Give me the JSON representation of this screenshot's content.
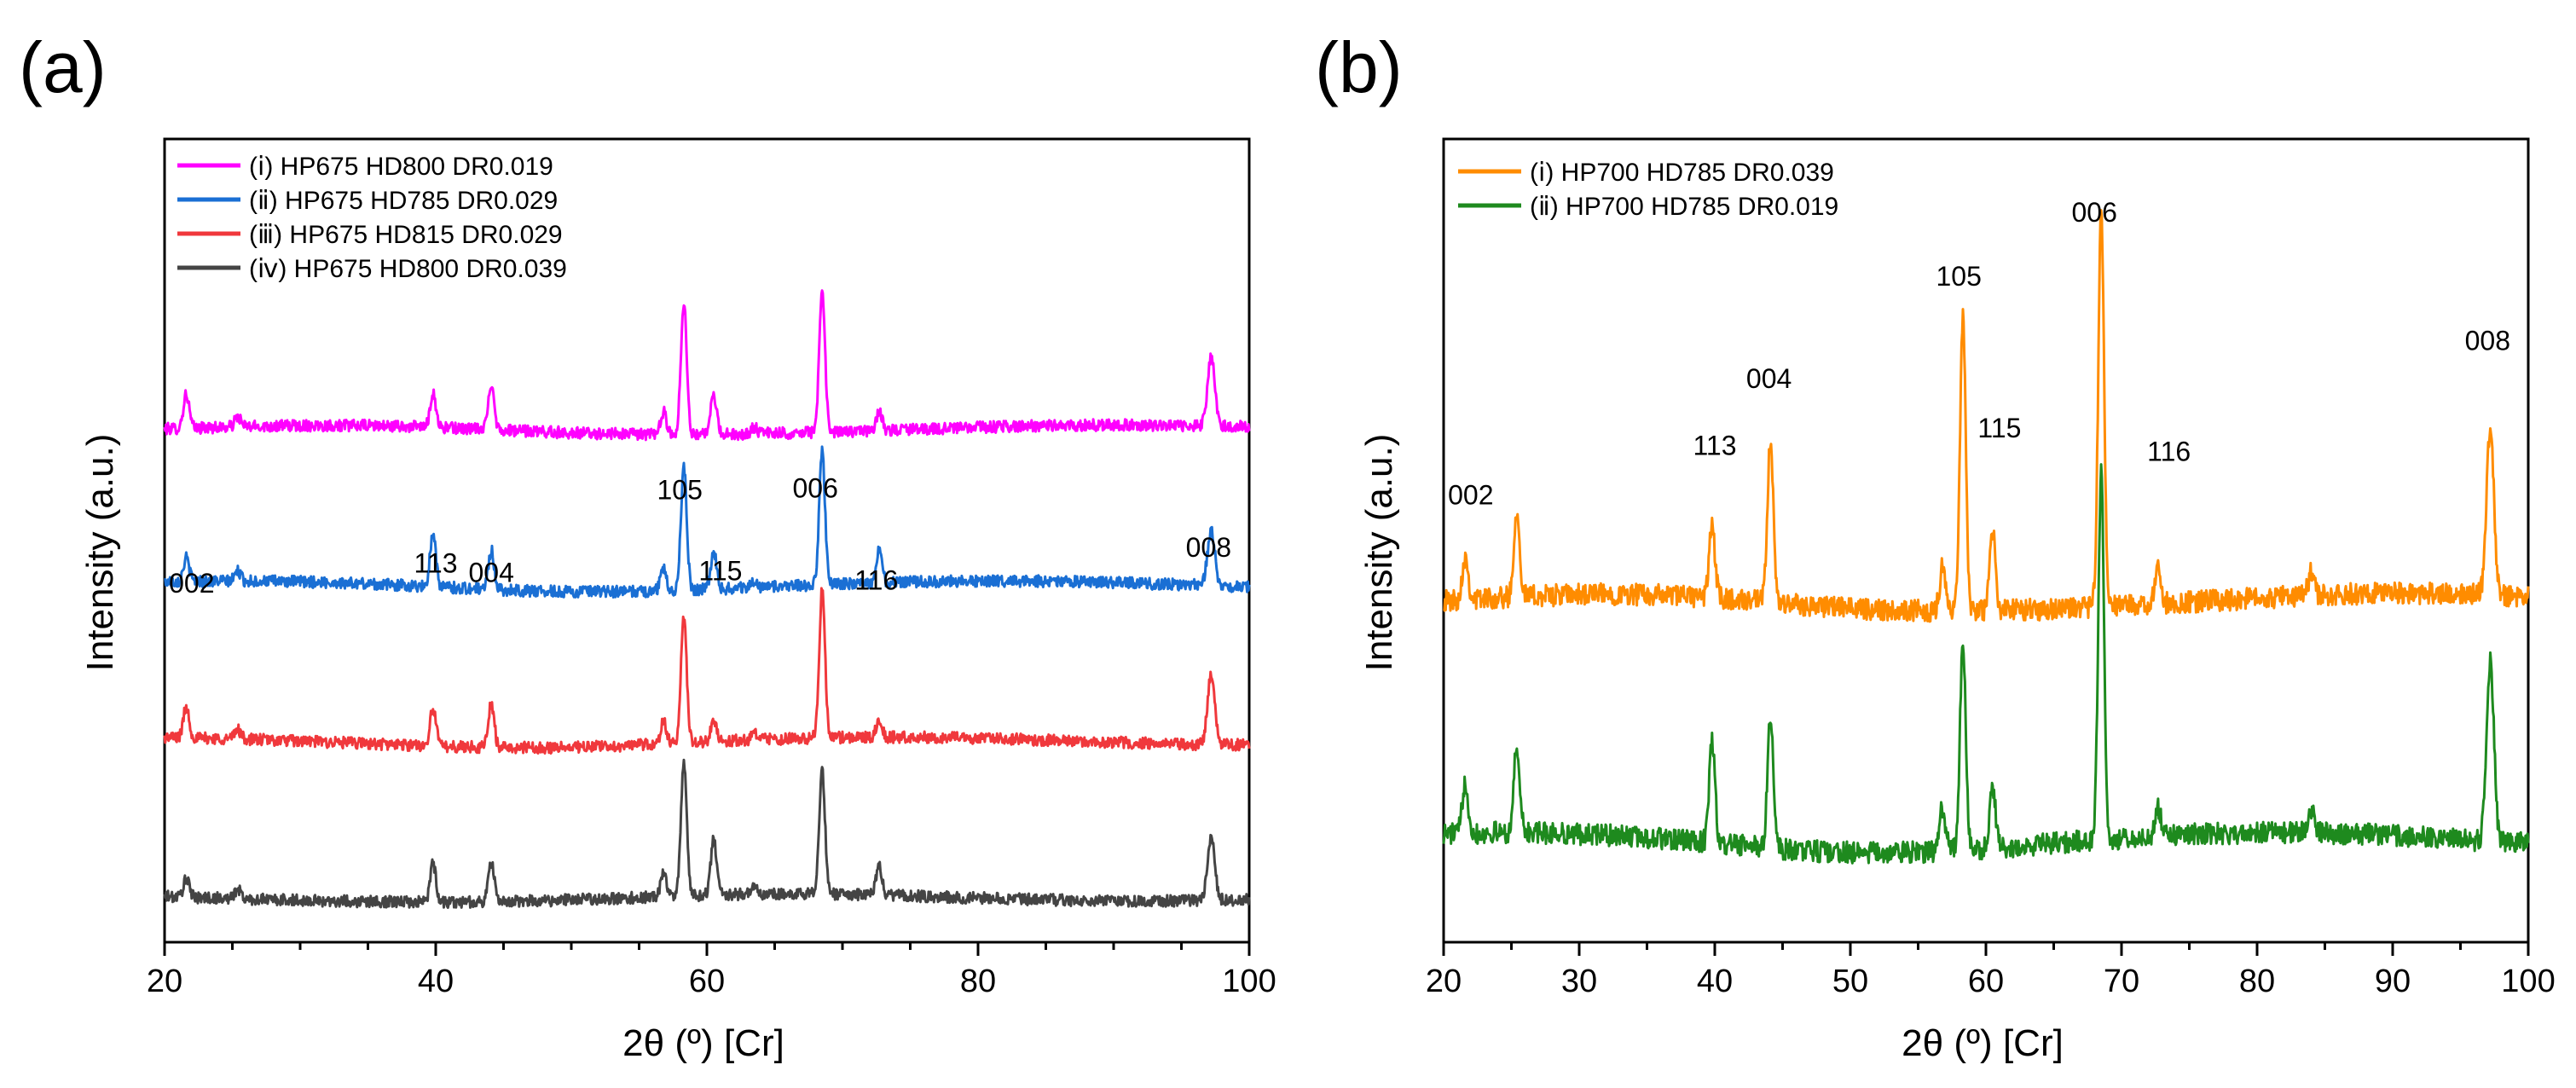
{
  "chart_data": [
    {
      "panel": "(a)",
      "type": "line",
      "xlabel": "2θ (º) [Cr]",
      "ylabel": "Intensity (a.u.)",
      "xlim": [
        20,
        100
      ],
      "x_ticks": [
        20,
        40,
        60,
        80,
        100
      ],
      "x_minor_step": 5,
      "legend_position": "top-left",
      "peaks": [
        {
          "hkl": "002",
          "two_theta": 21.6
        },
        {
          "hkl": "113",
          "two_theta": 39.8
        },
        {
          "hkl": "004",
          "two_theta": 44.1
        },
        {
          "hkl": "105",
          "two_theta": 58.3
        },
        {
          "hkl": "115",
          "two_theta": 60.5
        },
        {
          "hkl": "006",
          "two_theta": 68.5
        },
        {
          "hkl": "116",
          "two_theta": 72.7
        },
        {
          "hkl": "008",
          "two_theta": 97.2
        }
      ],
      "peak_labels": [
        {
          "text": "002",
          "x": 22.0,
          "level": 1.95
        },
        {
          "text": "113",
          "x": 40.0,
          "level": 2.08
        },
        {
          "text": "004",
          "x": 44.1,
          "level": 2.02
        },
        {
          "text": "105",
          "x": 58.0,
          "level": 2.55
        },
        {
          "text": "115",
          "x": 61.0,
          "level": 2.03
        },
        {
          "text": "006",
          "x": 68.0,
          "level": 2.56
        },
        {
          "text": "116",
          "x": 72.5,
          "level": 1.97
        },
        {
          "text": "008",
          "x": 97.0,
          "level": 2.18
        }
      ],
      "series": [
        {
          "name": "（ⅰ) HP675 HD800 DR0.019",
          "legend": "(ⅰ) HP675 HD800 DR0.019",
          "color": "#FF00FF",
          "baseline": 3.0,
          "peak_heights": {
            "002": 0.22,
            "113": 0.22,
            "004": 0.3,
            "105": 0.85,
            "115": 0.25,
            "006": 0.9,
            "116": 0.12,
            "008": 0.45
          }
        },
        {
          "name": "（ⅱ) HP675 HD785 DR0.029",
          "legend": "(ⅱ) HP675 HD785 DR0.029",
          "color": "#1A6FD4",
          "baseline": 2.0,
          "peak_heights": {
            "002": 0.15,
            "113": 0.35,
            "004": 0.25,
            "105": 0.8,
            "115": 0.25,
            "006": 0.85,
            "116": 0.2,
            "008": 0.35
          }
        },
        {
          "name": "（ⅲ) HP675 HD815 DR0.029",
          "legend": "(ⅲ) HP675 HD815 DR0.029",
          "color": "#F0383C",
          "baseline": 1.0,
          "peak_heights": {
            "002": 0.2,
            "113": 0.25,
            "004": 0.28,
            "105": 0.8,
            "115": 0.15,
            "006": 0.95,
            "116": 0.1,
            "008": 0.45
          }
        },
        {
          "name": "（ⅳ) HP675 HD800 DR0.039",
          "legend": "(ⅳ) HP675 HD800 DR0.039",
          "color": "#444444",
          "baseline": 0.0,
          "peak_heights": {
            "002": 0.12,
            "113": 0.25,
            "004": 0.25,
            "105": 0.85,
            "115": 0.35,
            "006": 0.8,
            "116": 0.2,
            "008": 0.4
          }
        }
      ]
    },
    {
      "panel": "(b)",
      "type": "line",
      "xlabel": "2θ (º) [Cr]",
      "ylabel": "Intensity (a.u.)",
      "xlim": [
        20,
        100
      ],
      "x_ticks": [
        20,
        30,
        40,
        50,
        60,
        70,
        80,
        90,
        100
      ],
      "x_minor_step": 5,
      "legend_position": "top-left",
      "peaks": [
        {
          "hkl": "002",
          "two_theta": 21.6
        },
        {
          "hkl": "113",
          "two_theta": 39.8
        },
        {
          "hkl": "004",
          "two_theta": 44.1
        },
        {
          "hkl": "105",
          "two_theta": 58.3
        },
        {
          "hkl": "115",
          "two_theta": 60.5
        },
        {
          "hkl": "006",
          "two_theta": 68.5
        },
        {
          "hkl": "116",
          "two_theta": 72.7
        },
        {
          "hkl": "008",
          "two_theta": 97.2
        }
      ],
      "extra_peaks": [
        {
          "two_theta": 25.4,
          "height": 0.3
        },
        {
          "two_theta": 56.8,
          "height": 0.15
        },
        {
          "two_theta": 84.0,
          "height": 0.08
        }
      ],
      "peak_labels": [
        {
          "text": "002",
          "x": 22.0,
          "level": 1.15
        },
        {
          "text": "113",
          "x": 40.0,
          "level": 1.32
        },
        {
          "text": "004",
          "x": 44.0,
          "level": 1.55
        },
        {
          "text": "105",
          "x": 58.0,
          "level": 1.9
        },
        {
          "text": "115",
          "x": 61.0,
          "level": 1.38
        },
        {
          "text": "006",
          "x": 68.0,
          "level": 2.12
        },
        {
          "text": "116",
          "x": 73.5,
          "level": 1.3
        },
        {
          "text": "008",
          "x": 97.0,
          "level": 1.68
        }
      ],
      "series": [
        {
          "name": "（ⅰ) HP700 HD785 DR0.039",
          "legend": "(ⅰ) HP700 HD785 DR0.039",
          "color": "#FF8C00",
          "baseline": 0.82,
          "peak_heights": {
            "002": 0.15,
            "113": 0.25,
            "004": 0.55,
            "105": 1.0,
            "115": 0.28,
            "006": 1.35,
            "116": 0.12,
            "008": 0.58
          }
        },
        {
          "name": "（ⅱ) HP700 HD785 DR0.019",
          "legend": "(ⅱ) HP700 HD785 DR0.019",
          "color": "#1E8A1E",
          "baseline": 0.0,
          "peak_heights": {
            "002": 0.18,
            "113": 0.35,
            "004": 0.45,
            "105": 0.7,
            "115": 0.2,
            "006": 1.25,
            "116": 0.1,
            "008": 0.62
          }
        }
      ]
    }
  ]
}
